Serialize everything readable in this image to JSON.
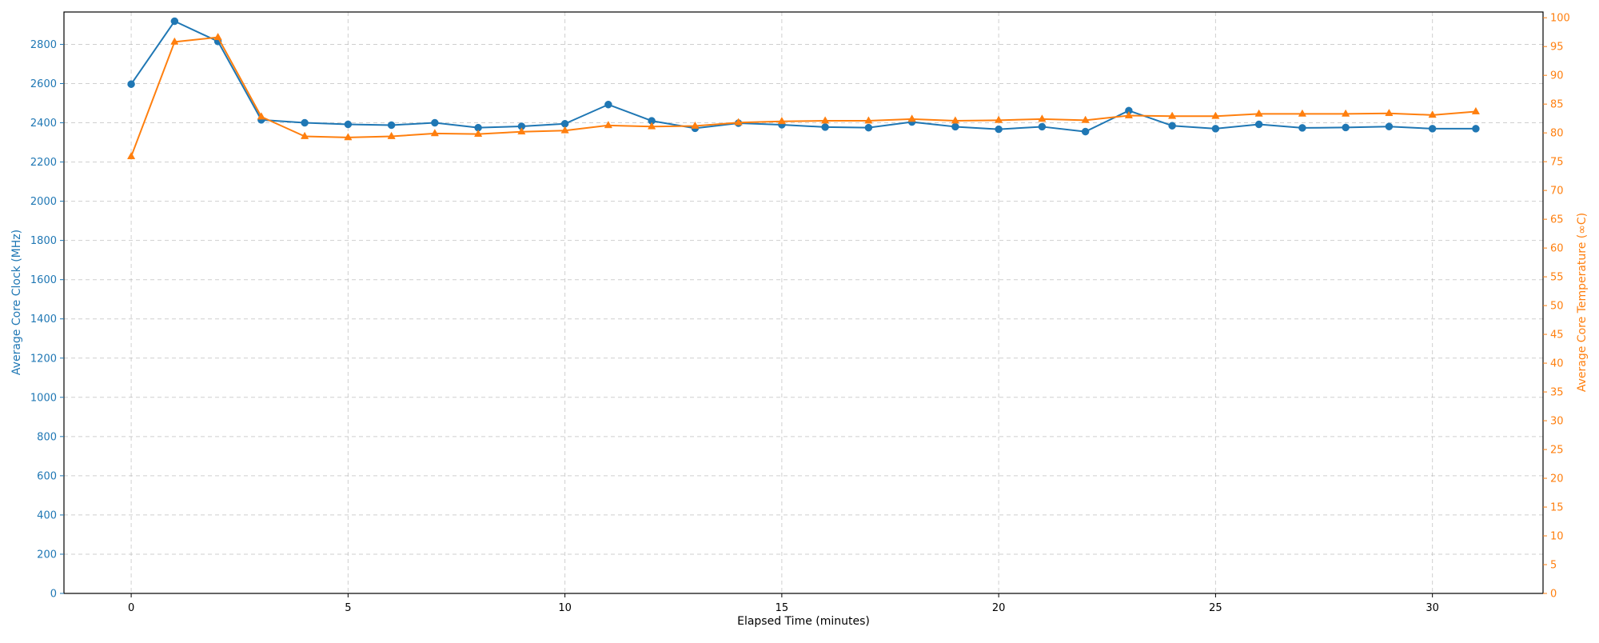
{
  "chart_data": {
    "type": "line",
    "xlabel": "Elapsed Time (minutes)",
    "ylabel_left": "Average Core Clock (MHz)",
    "ylabel_right": "Average Core Temperature (∞C)",
    "xlim": [
      -1.55,
      32.55
    ],
    "ylim_left": [
      0,
      2965
    ],
    "ylim_right": [
      0,
      101
    ],
    "xticks": [
      0,
      5,
      10,
      15,
      20,
      25,
      30
    ],
    "yticks_left": [
      0,
      200,
      400,
      600,
      800,
      1000,
      1200,
      1400,
      1600,
      1800,
      2000,
      2200,
      2400,
      2600,
      2800
    ],
    "yticks_right": [
      0,
      5,
      10,
      15,
      20,
      25,
      30,
      35,
      40,
      45,
      50,
      55,
      60,
      65,
      70,
      75,
      80,
      85,
      90,
      95,
      100
    ],
    "grid": true,
    "x": [
      0,
      1,
      2,
      3,
      4,
      5,
      6,
      7,
      8,
      9,
      10,
      11,
      12,
      13,
      14,
      15,
      16,
      17,
      18,
      19,
      20,
      21,
      22,
      23,
      24,
      25,
      26,
      27,
      28,
      29,
      30,
      31
    ],
    "series": [
      {
        "axis": "left",
        "color": "#1f77b4",
        "marker": "circle",
        "values": [
          2597,
          2918,
          2815,
          2415,
          2400,
          2392,
          2388,
          2400,
          2375,
          2382,
          2395,
          2493,
          2410,
          2372,
          2398,
          2390,
          2378,
          2375,
          2404,
          2380,
          2367,
          2380,
          2355,
          2462,
          2385,
          2370,
          2392,
          2374,
          2376,
          2381,
          2370,
          2370
        ]
      },
      {
        "axis": "right",
        "color": "#ff7f0e",
        "marker": "triangle",
        "values": [
          75.9,
          95.8,
          96.6,
          82.8,
          79.4,
          79.2,
          79.4,
          79.9,
          79.8,
          80.2,
          80.4,
          81.3,
          81.1,
          81.2,
          81.8,
          82.0,
          82.1,
          82.1,
          82.4,
          82.1,
          82.2,
          82.4,
          82.2,
          83.0,
          82.9,
          82.9,
          83.3,
          83.3,
          83.3,
          83.4,
          83.1,
          83.7
        ]
      }
    ]
  }
}
